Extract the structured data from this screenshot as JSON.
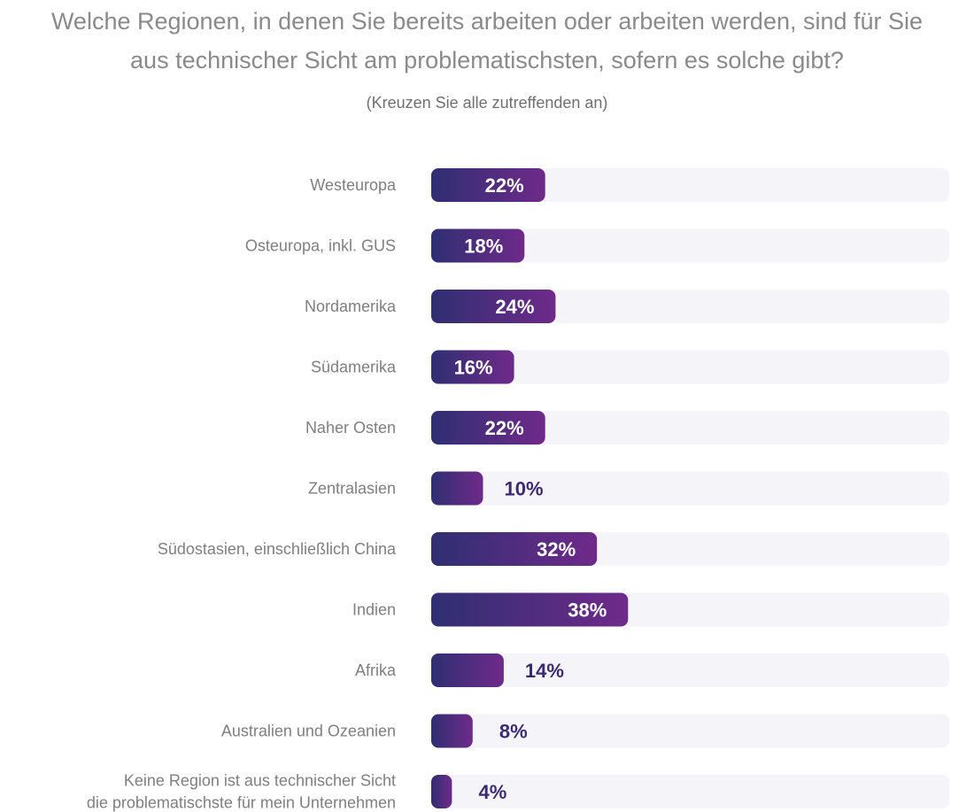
{
  "colors": {
    "track": "#f5f5f9",
    "bar_start": "#2f2f72",
    "bar_end": "#6f2a8a",
    "label_text": "#7f7f7f",
    "value_inside": "#ffffff",
    "value_outside": "#3b2a72"
  },
  "header": {
    "title_line1": "Welche Regionen, in denen Sie bereits arbeiten oder arbeiten werden, sind für Sie",
    "title_line2": "aus technischer Sicht am problematischsten, sofern es solche gibt?",
    "subtitle": "(Kreuzen Sie alle zutreffenden an)"
  },
  "chart_data": {
    "type": "bar",
    "orientation": "horizontal",
    "title": "Welche Regionen, in denen Sie bereits arbeiten oder arbeiten werden, sind für Sie aus technischer Sicht am problematischsten, sofern es solche gibt?",
    "subtitle": "(Kreuzen Sie alle zutreffenden an)",
    "xlabel": "",
    "ylabel": "",
    "xlim": [
      0,
      100
    ],
    "grid": false,
    "legend": "none",
    "categories": [
      [
        "Westeuropa"
      ],
      [
        "Osteuropa, inkl. GUS"
      ],
      [
        "Nordamerika"
      ],
      [
        "Südamerika"
      ],
      [
        "Naher Osten"
      ],
      [
        "Zentralasien"
      ],
      [
        "Südostasien, einschließlich China"
      ],
      [
        "Indien"
      ],
      [
        "Afrika"
      ],
      [
        "Australien und Ozeanien"
      ],
      [
        "Keine Region ist aus technischer Sicht",
        "die problematischste für mein Unternehmen"
      ]
    ],
    "values": [
      22,
      18,
      24,
      16,
      22,
      10,
      32,
      38,
      14,
      8,
      4
    ],
    "value_labels": [
      "22%",
      "18%",
      "24%",
      "16%",
      "22%",
      "10%",
      "32%",
      "38%",
      "14%",
      "8%",
      "4%"
    ]
  }
}
